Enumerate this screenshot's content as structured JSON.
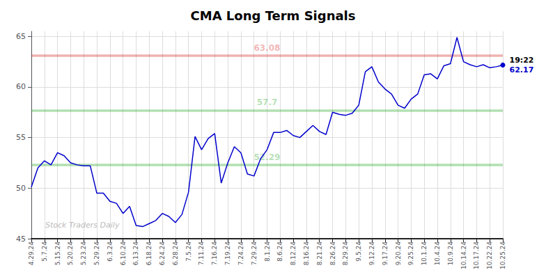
{
  "chart_data": {
    "type": "line",
    "title": "CMA Long Term Signals",
    "color": "#0000cc",
    "categories": [
      "4.29.24",
      null,
      "5.7.24",
      null,
      "5.15.24",
      null,
      "5.20.24",
      null,
      "5.23.24",
      null,
      "5.29.24",
      null,
      "6.3.24",
      null,
      "6.10.24",
      null,
      "6.13.24",
      null,
      "6.18.24",
      null,
      "6.24.24",
      null,
      "6.28.24",
      null,
      "7.5.24",
      null,
      "7.11.24",
      null,
      "7.16.24",
      null,
      "7.19.24",
      null,
      "7.24.24",
      null,
      "7.29.24",
      null,
      "8.1.24",
      null,
      "8.6.24",
      null,
      "8.12.24",
      null,
      "8.16.24",
      null,
      "8.21.24",
      null,
      "8.26.24",
      null,
      "8.29.24",
      null,
      "9.5.24",
      null,
      "9.12.24",
      null,
      "9.17.24",
      null,
      "9.20.24",
      null,
      "9.25.24",
      null,
      "10.1.24",
      null,
      "10.4.24",
      null,
      "10.9.24",
      null,
      "10.14.24",
      null,
      "10.17.24",
      null,
      "10.22.24",
      null,
      "10.25.24"
    ],
    "values": [
      50.1,
      52.0,
      52.7,
      52.3,
      53.5,
      53.2,
      52.5,
      52.3,
      52.2,
      52.2,
      49.5,
      49.5,
      48.7,
      48.5,
      47.5,
      48.2,
      46.3,
      46.2,
      46.5,
      46.8,
      47.5,
      47.2,
      46.6,
      47.4,
      49.6,
      55.1,
      53.8,
      54.9,
      55.4,
      50.5,
      52.5,
      54.1,
      53.5,
      51.4,
      51.2,
      52.9,
      53.8,
      55.5,
      55.5,
      55.7,
      55.2,
      55.0,
      55.6,
      56.2,
      55.6,
      55.3,
      57.5,
      57.3,
      57.2,
      57.4,
      58.2,
      61.5,
      62.0,
      60.5,
      59.8,
      59.3,
      58.2,
      57.9,
      58.8,
      59.3,
      61.2,
      61.3,
      60.8,
      62.1,
      62.3,
      64.9,
      62.5,
      62.2,
      62.0,
      62.2,
      61.9,
      62.0,
      62.17
    ],
    "ylim": [
      45,
      65.5
    ],
    "yticks": [
      45,
      50,
      55,
      60,
      65
    ],
    "grid": true,
    "annotations": [
      {
        "type": "hline",
        "y": 63.08,
        "label": "63.08",
        "color": "#cc0000"
      },
      {
        "type": "hline",
        "y": 57.7,
        "label": "57.7",
        "color": "#009900"
      },
      {
        "type": "hline",
        "y": 52.29,
        "label": "52.29",
        "color": "#009900"
      },
      {
        "type": "last_point",
        "text": "19:22"
      },
      {
        "type": "last_point",
        "text": "62.17",
        "value": 62.17
      },
      {
        "type": "watermark",
        "text": "Stock Traders Daily",
        "color": "#bbbbbb"
      }
    ]
  }
}
